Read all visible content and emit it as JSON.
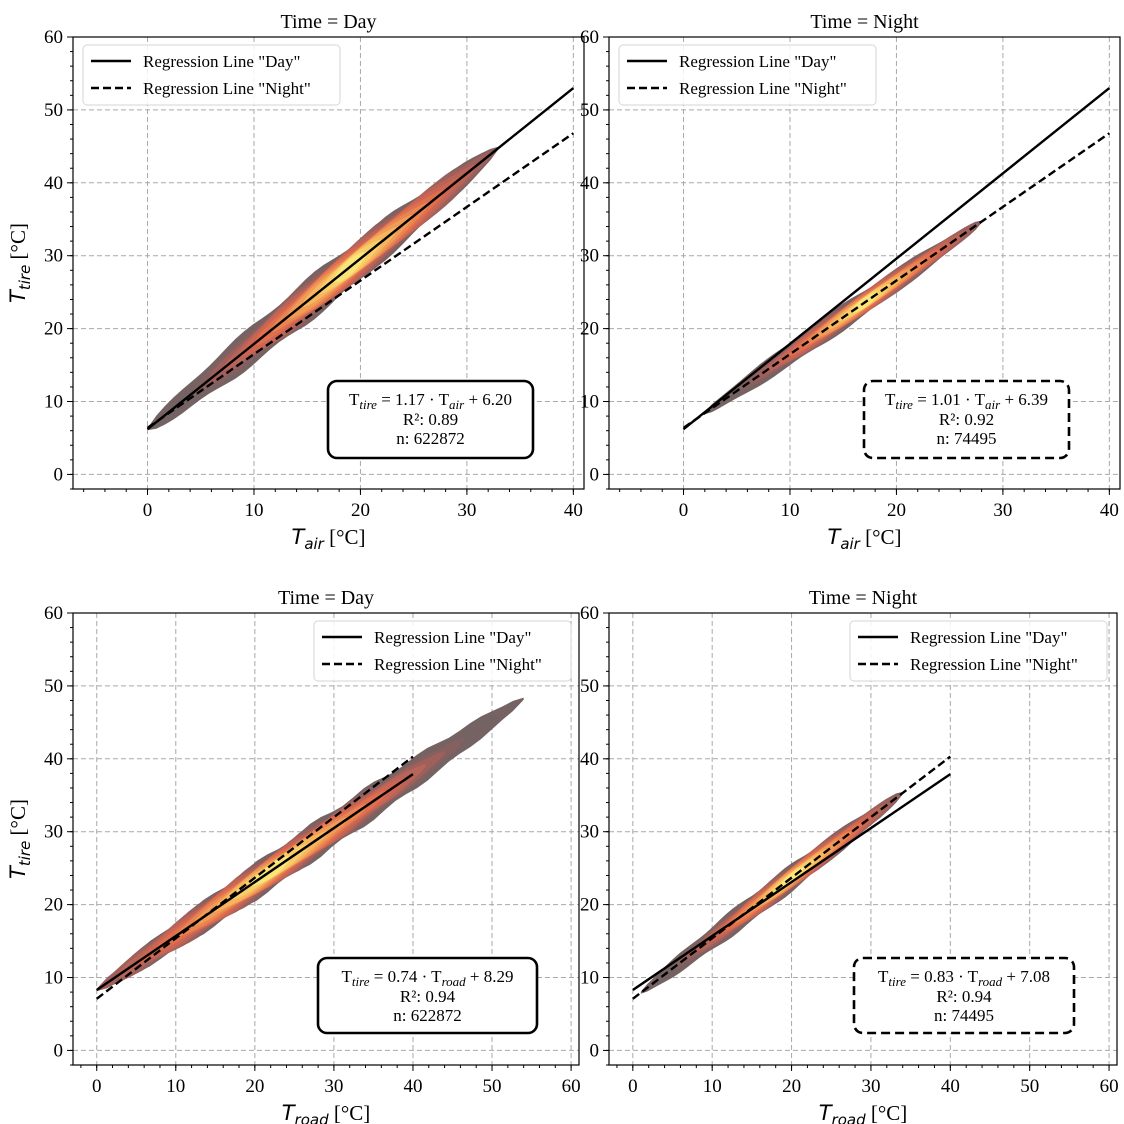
{
  "legend": {
    "day_label": "Regression Line \"Day\"",
    "night_label": "Regression Line \"Night\""
  },
  "colors": {
    "density": [
      "#6e5b5c",
      "#86605f",
      "#a0605c",
      "#b86458",
      "#cf6552",
      "#e0704e",
      "#ea8550",
      "#f19d56",
      "#f6b75e",
      "#f9d068",
      "#fbe67a"
    ],
    "regression": "#000000",
    "grid": "#a9a9a9"
  },
  "chart_data": [
    {
      "type": "scatter",
      "title": "Time = Day",
      "xlabel_var": "T",
      "xlabel_sub": "air",
      "xlabel_unit": "[°C]",
      "ylabel_var": "T",
      "ylabel_sub": "tire",
      "ylabel_unit": "[°C]",
      "xlim": [
        -7,
        41
      ],
      "ylim": [
        -2,
        60
      ],
      "xticks": [
        0,
        10,
        20,
        30,
        40
      ],
      "yticks": [
        0,
        10,
        20,
        30,
        40,
        50,
        60
      ],
      "legend_position": "upper-left",
      "grid": true,
      "lines": [
        {
          "series": "Day",
          "style": "solid",
          "x": [
            0,
            40
          ],
          "y": [
            6.2,
            53.0
          ]
        },
        {
          "series": "Night",
          "style": "dashed",
          "x": [
            0,
            40
          ],
          "y": [
            6.39,
            46.8
          ]
        }
      ],
      "density": {
        "x_range": [
          0,
          33
        ],
        "slope": 1.17,
        "intercept": 6.2,
        "width": 2.8,
        "hot_center": 19
      },
      "annotation": {
        "border": "solid",
        "line1_pre": "T",
        "line1_sub1": "tire",
        "line1_mid": " = 1.17 · T",
        "line1_sub2": "air",
        "line1_post": " + 6.20",
        "line2": "R²: 0.89",
        "line3": "n: 622872"
      }
    },
    {
      "type": "scatter",
      "title": "Time = Night",
      "xlabel_var": "T",
      "xlabel_sub": "air",
      "xlabel_unit": "[°C]",
      "ylabel_var": "",
      "ylabel_sub": "",
      "ylabel_unit": "",
      "xlim": [
        -7,
        41
      ],
      "ylim": [
        -2,
        60
      ],
      "xticks": [
        0,
        10,
        20,
        30,
        40
      ],
      "yticks": [
        0,
        10,
        20,
        30,
        40,
        50,
        60
      ],
      "legend_position": "upper-left",
      "grid": true,
      "lines": [
        {
          "series": "Day",
          "style": "solid",
          "x": [
            0,
            40
          ],
          "y": [
            6.2,
            53.0
          ]
        },
        {
          "series": "Night",
          "style": "dashed",
          "x": [
            0,
            40
          ],
          "y": [
            6.39,
            46.8
          ]
        }
      ],
      "density": {
        "x_range": [
          2,
          28
        ],
        "slope": 1.01,
        "intercept": 6.39,
        "width": 1.6,
        "hot_center": 17
      },
      "annotation": {
        "border": "dashed",
        "line1_pre": "T",
        "line1_sub1": "tire",
        "line1_mid": " = 1.01 · T",
        "line1_sub2": "air",
        "line1_post": " + 6.39",
        "line2": "R²: 0.92",
        "line3": "n: 74495"
      }
    },
    {
      "type": "scatter",
      "title": "Time = Day",
      "xlabel_var": "T",
      "xlabel_sub": "road",
      "xlabel_unit": "[°C]",
      "ylabel_var": "T",
      "ylabel_sub": "tire",
      "ylabel_unit": "[°C]",
      "xlim": [
        -3,
        61
      ],
      "ylim": [
        -2,
        60
      ],
      "xticks": [
        0,
        10,
        20,
        30,
        40,
        50,
        60
      ],
      "yticks": [
        0,
        10,
        20,
        30,
        40,
        50,
        60
      ],
      "legend_position": "upper-right",
      "grid": true,
      "lines": [
        {
          "series": "Day",
          "style": "solid",
          "x": [
            0,
            40
          ],
          "y": [
            8.29,
            37.9
          ]
        },
        {
          "series": "Night",
          "style": "dashed",
          "x": [
            0,
            40
          ],
          "y": [
            7.08,
            40.3
          ]
        }
      ],
      "density": {
        "x_range": [
          0,
          54
        ],
        "slope": 0.74,
        "intercept": 8.29,
        "width": 2.4,
        "hot_center": 22
      },
      "annotation": {
        "border": "solid",
        "line1_pre": "T",
        "line1_sub1": "tire",
        "line1_mid": " = 0.74 · T",
        "line1_sub2": "road",
        "line1_post": " + 8.29",
        "line2": "R²: 0.94",
        "line3": "n: 622872"
      }
    },
    {
      "type": "scatter",
      "title": "Time = Night",
      "xlabel_var": "T",
      "xlabel_sub": "road",
      "xlabel_unit": "[°C]",
      "ylabel_var": "",
      "ylabel_sub": "",
      "ylabel_unit": "",
      "xlim": [
        -3,
        61
      ],
      "ylim": [
        -2,
        60
      ],
      "xticks": [
        0,
        10,
        20,
        30,
        40,
        50,
        60
      ],
      "yticks": [
        0,
        10,
        20,
        30,
        40,
        50,
        60
      ],
      "legend_position": "upper-right",
      "grid": true,
      "lines": [
        {
          "series": "Day",
          "style": "solid",
          "x": [
            0,
            40
          ],
          "y": [
            8.29,
            37.9
          ]
        },
        {
          "series": "Night",
          "style": "dashed",
          "x": [
            0,
            40
          ],
          "y": [
            7.08,
            40.3
          ]
        }
      ],
      "density": {
        "x_range": [
          1,
          34
        ],
        "slope": 0.83,
        "intercept": 7.08,
        "width": 1.7,
        "hot_center": 20
      },
      "annotation": {
        "border": "dashed",
        "line1_pre": "T",
        "line1_sub1": "tire",
        "line1_mid": " = 0.83 · T",
        "line1_sub2": "road",
        "line1_post": " + 7.08",
        "line2": "R²: 0.94",
        "line3": "n: 74495"
      }
    }
  ]
}
